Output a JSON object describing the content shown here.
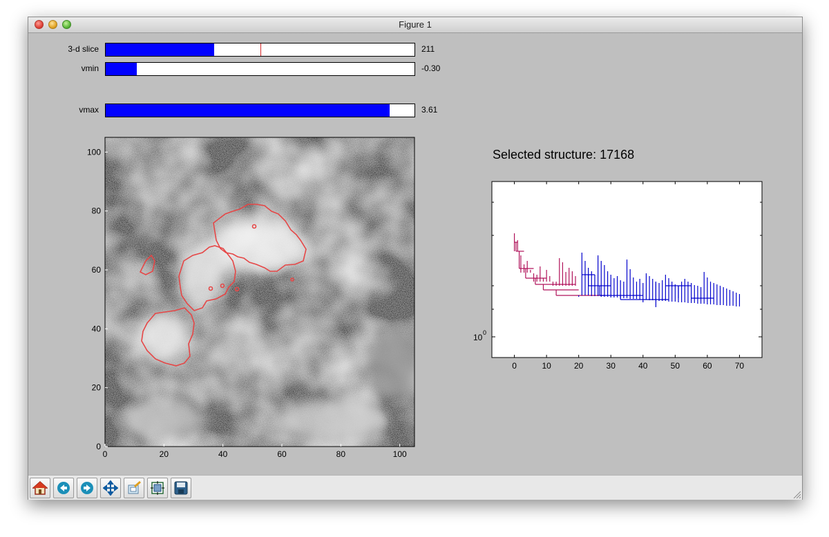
{
  "window": {
    "title": "Figure 1"
  },
  "sliders": [
    {
      "label": "3-d slice",
      "value_text": "211",
      "fill_fraction": 0.352,
      "marker_fraction": 0.5
    },
    {
      "label": "vmin",
      "value_text": "-0.30",
      "fill_fraction": 0.1
    },
    {
      "label": "vmax",
      "value_text": "3.61",
      "fill_fraction": 0.92
    }
  ],
  "image_plot": {
    "x_ticks": [
      "0",
      "20",
      "40",
      "60",
      "80",
      "100"
    ],
    "y_ticks": [
      "0",
      "20",
      "40",
      "60",
      "80",
      "100"
    ],
    "contour_color": "#e64646"
  },
  "dendrogram": {
    "title": "Selected structure: 17168",
    "x_ticks": [
      "0",
      "10",
      "20",
      "30",
      "40",
      "50",
      "60",
      "70"
    ],
    "y_tick_base": "10",
    "y_tick_exp": "0",
    "selected_color": "#b0125a",
    "other_color": "#0000cc"
  },
  "chart_data": {
    "type": "line",
    "title": "Selected structure: 17168",
    "xlim": [
      -7,
      77
    ],
    "yscale": "log",
    "x_ticks": [
      0,
      10,
      20,
      30,
      40,
      50,
      60,
      70
    ],
    "y_ticks": [
      1
    ],
    "selected_leaves_x": [
      0,
      1,
      2,
      3,
      4,
      5,
      6,
      7,
      8,
      9,
      10,
      11,
      12,
      13,
      14,
      15,
      16,
      17,
      18,
      19
    ],
    "other_leaves_x": [
      21,
      22,
      23,
      24,
      25,
      26,
      27,
      28,
      29,
      30,
      31,
      32,
      33,
      34,
      35,
      36,
      37,
      38,
      39,
      40,
      41,
      42,
      43,
      44,
      45,
      46,
      47,
      48,
      49,
      50,
      51,
      52,
      53,
      54,
      55,
      56,
      57,
      58,
      59,
      60,
      61,
      62,
      63,
      64,
      65,
      66,
      67,
      68,
      69,
      70
    ]
  },
  "toolbar": [
    {
      "name": "home-icon",
      "tooltip": "Home"
    },
    {
      "name": "back-icon",
      "tooltip": "Back"
    },
    {
      "name": "forward-icon",
      "tooltip": "Forward"
    },
    {
      "name": "pan-icon",
      "tooltip": "Pan"
    },
    {
      "name": "zoom-icon",
      "tooltip": "Zoom"
    },
    {
      "name": "subplots-icon",
      "tooltip": "Subplots"
    },
    {
      "name": "save-icon",
      "tooltip": "Save"
    }
  ]
}
